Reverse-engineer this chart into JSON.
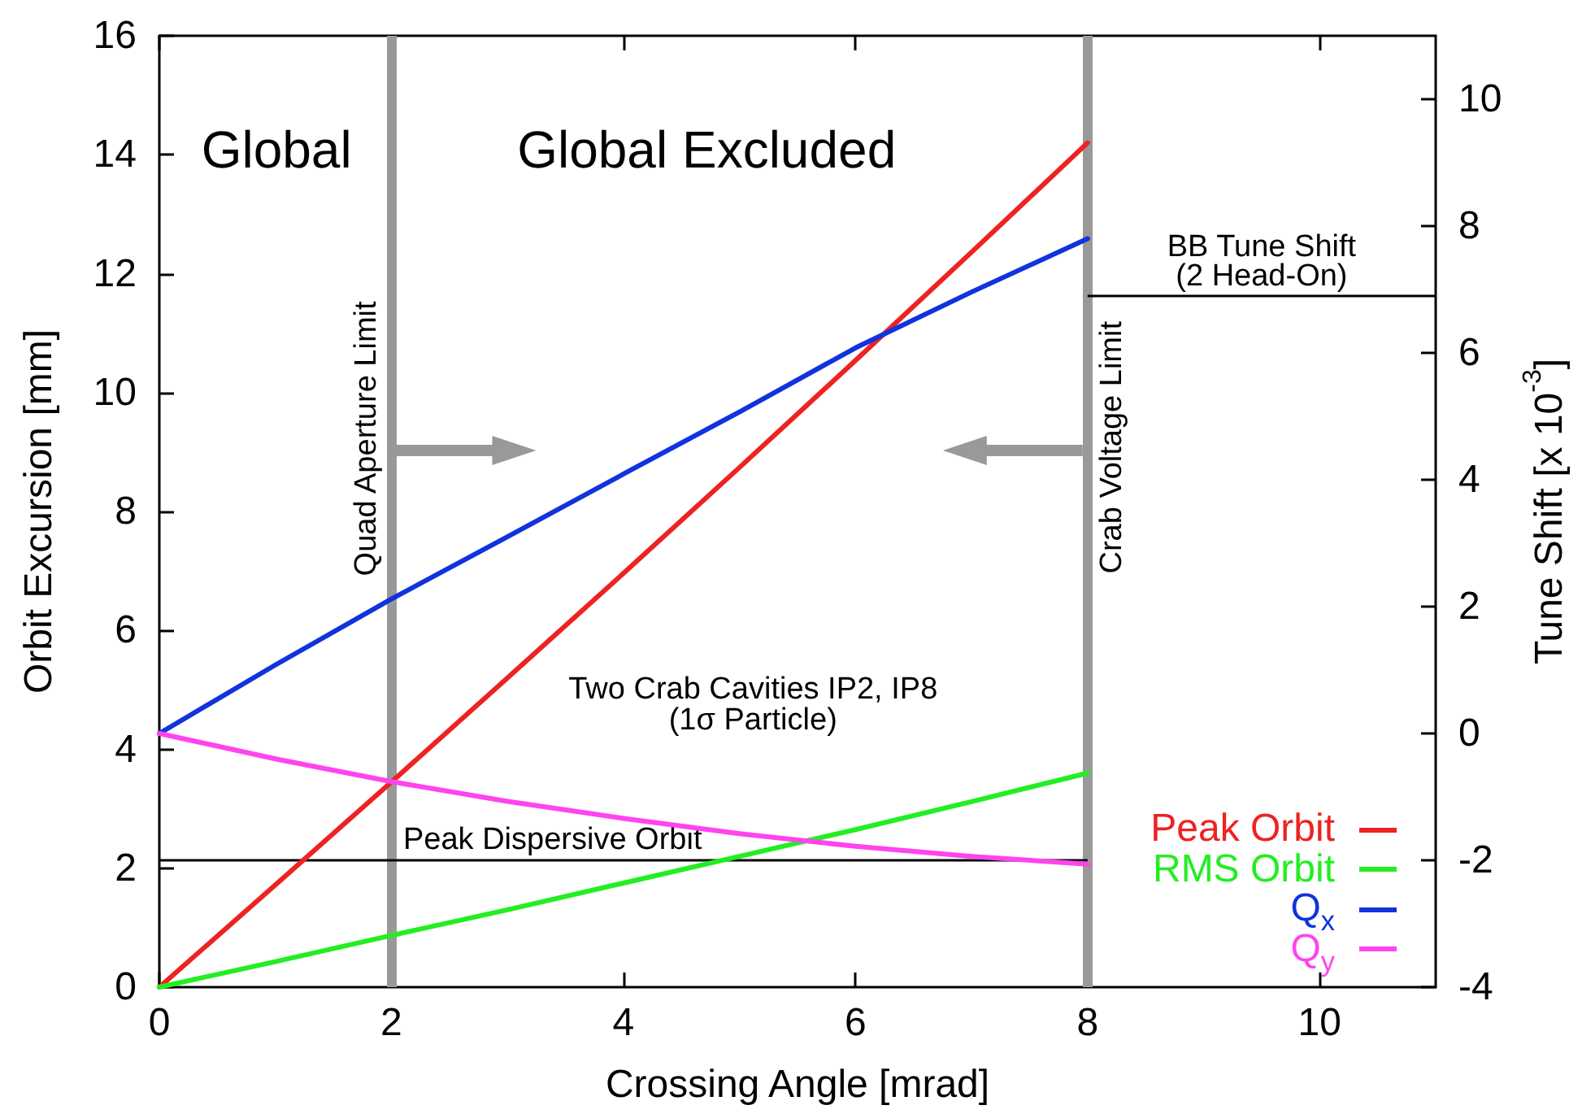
{
  "chart_data": {
    "type": "line",
    "xlabel": "Crossing Angle [mrad]",
    "ylabel": "Orbit Excursion [mm]",
    "y2label": "Tune Shift [x 10$^{-3}$]",
    "x": [
      0,
      1,
      2,
      3,
      4,
      5,
      6,
      7,
      8
    ],
    "series": [
      {
        "name": "Peak Orbit",
        "color": "#ee2222",
        "values": [
          0,
          1.72,
          3.45,
          5.2,
          6.96,
          8.74,
          10.54,
          12.36,
          14.2
        ]
      },
      {
        "name": "RMS Orbit",
        "color": "#22ee22",
        "values": [
          0,
          0.43,
          0.87,
          1.3,
          1.75,
          2.2,
          2.65,
          3.12,
          3.6
        ]
      },
      {
        "name": "Q$_{x}$",
        "color": "#1133dd",
        "axis": "y2",
        "values": [
          0,
          1.08,
          2.12,
          3.1,
          4.09,
          5.07,
          6.08,
          6.96,
          7.8
        ]
      },
      {
        "name": "Q$_{y}$",
        "color": "#ff44ee",
        "axis": "y2",
        "values": [
          0,
          -0.4,
          -0.76,
          -1.07,
          -1.34,
          -1.58,
          -1.78,
          -1.94,
          -2.06
        ]
      }
    ],
    "xlim": [
      0,
      11
    ],
    "xticks": [
      0,
      2,
      4,
      6,
      8,
      10
    ],
    "ylim": [
      0,
      16
    ],
    "yticks": [
      0,
      2,
      4,
      6,
      8,
      10,
      12,
      14,
      16
    ],
    "y2lim": [
      -4,
      11
    ],
    "y2ticks": [
      -4,
      -2,
      0,
      2,
      4,
      6,
      8,
      10
    ],
    "ref_lines": [
      {
        "axis": "x",
        "value": 2,
        "label": "Quad Aperture Limit",
        "color": "#999999"
      },
      {
        "axis": "x",
        "value": 8,
        "label": "Crab Voltage Limit",
        "color": "#999999"
      },
      {
        "axis": "y",
        "value": 2.15,
        "label": "Peak Dispersive Orbit",
        "color": "#000000"
      },
      {
        "axis": "y2",
        "value": 6.9,
        "label": "BB Tune Shift\n(2 Head-On)",
        "color": "#000000"
      }
    ],
    "annotations": [
      "Global",
      "Global Excluded",
      "Two Crab Cavities IP2, IP8\n(1σ Particle)"
    ],
    "legend": "bottom right",
    "marker": "none",
    "line_style": "solid"
  }
}
